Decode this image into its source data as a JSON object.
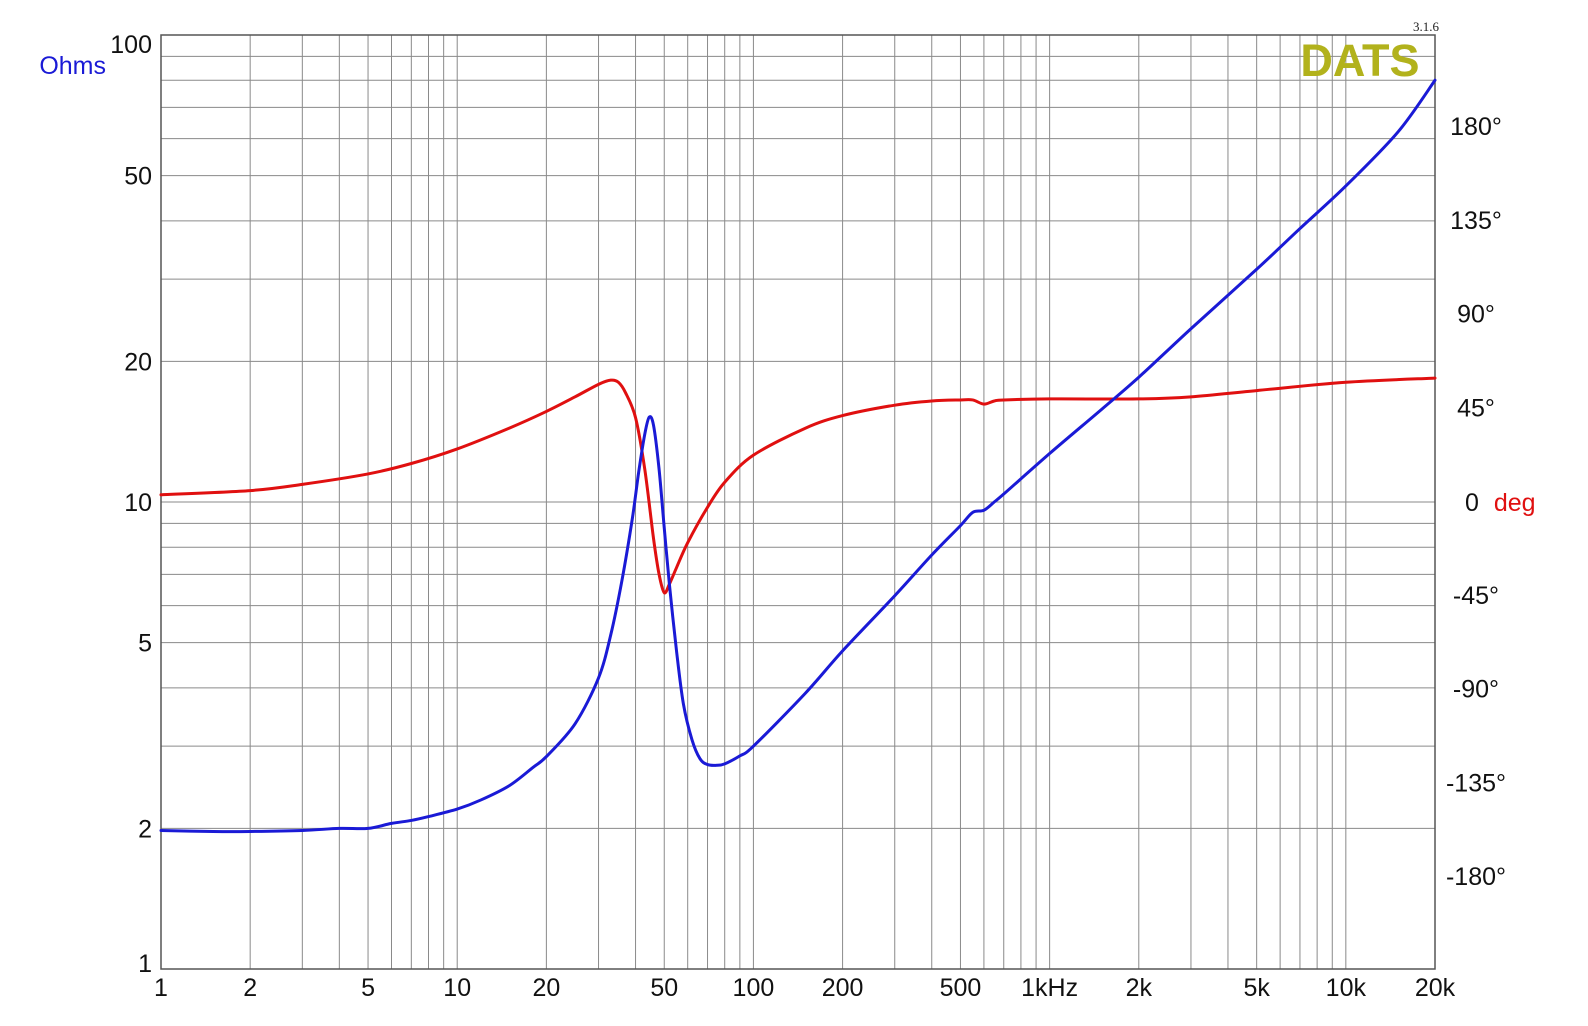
{
  "logo": {
    "brand": "DATS",
    "version": "3.1.6"
  },
  "colors": {
    "impedance": "#1a1ad6",
    "phase": "#e01010",
    "grid": "#8a8a8a",
    "frame": "#555555",
    "brand": "#b2b21c"
  },
  "chart_data": {
    "type": "line",
    "title": "",
    "x_scale": "log",
    "y_scale": "log",
    "xlim": [
      1,
      20000
    ],
    "ylim": [
      1,
      100
    ],
    "y2lim": [
      -180,
      180
    ],
    "grid": true,
    "x_tick_labels": [
      {
        "v": 1,
        "t": "1"
      },
      {
        "v": 2,
        "t": "2"
      },
      {
        "v": 5,
        "t": "5"
      },
      {
        "v": 10,
        "t": "10"
      },
      {
        "v": 20,
        "t": "20"
      },
      {
        "v": 50,
        "t": "50"
      },
      {
        "v": 100,
        "t": "100"
      },
      {
        "v": 200,
        "t": "200"
      },
      {
        "v": 500,
        "t": "500"
      },
      {
        "v": 1000,
        "t": "1kHz"
      },
      {
        "v": 2000,
        "t": "2k"
      },
      {
        "v": 5000,
        "t": "5k"
      },
      {
        "v": 10000,
        "t": "10k"
      },
      {
        "v": 20000,
        "t": "20k"
      }
    ],
    "y_axis_label": "Ohms",
    "y_tick_labels": [
      {
        "v": 1,
        "t": "1"
      },
      {
        "v": 2,
        "t": "2"
      },
      {
        "v": 5,
        "t": "5"
      },
      {
        "v": 10,
        "t": "10"
      },
      {
        "v": 20,
        "t": "20"
      },
      {
        "v": 50,
        "t": "50"
      },
      {
        "v": 100,
        "t": "100"
      }
    ],
    "y2_axis_label_prefix": "0",
    "y2_axis_label_unit": "deg",
    "y2_tick_labels": [
      {
        "v": 180,
        "t": "180°"
      },
      {
        "v": 135,
        "t": "135°"
      },
      {
        "v": 90,
        "t": "90°"
      },
      {
        "v": 45,
        "t": "45°"
      },
      {
        "v": -45,
        "t": "-45°"
      },
      {
        "v": -90,
        "t": "-90°"
      },
      {
        "v": -135,
        "t": "-135°"
      },
      {
        "v": -180,
        "t": "-180°"
      }
    ],
    "series": [
      {
        "axis": "left",
        "color": "#1a1ad6",
        "points": [
          [
            1,
            1.98
          ],
          [
            1.5,
            1.97
          ],
          [
            2,
            1.97
          ],
          [
            3,
            1.98
          ],
          [
            4,
            2.0
          ],
          [
            5,
            2.0
          ],
          [
            6,
            2.05
          ],
          [
            7,
            2.08
          ],
          [
            8,
            2.12
          ],
          [
            10,
            2.2
          ],
          [
            12,
            2.3
          ],
          [
            15,
            2.47
          ],
          [
            18,
            2.7
          ],
          [
            20,
            2.85
          ],
          [
            25,
            3.35
          ],
          [
            30,
            4.2
          ],
          [
            33,
            5.2
          ],
          [
            36,
            6.8
          ],
          [
            39,
            9.2
          ],
          [
            41,
            11.6
          ],
          [
            43,
            14.0
          ],
          [
            44.5,
            15.2
          ],
          [
            46,
            14.6
          ],
          [
            48,
            11.8
          ],
          [
            50,
            8.8
          ],
          [
            52,
            6.7
          ],
          [
            55,
            4.8
          ],
          [
            58,
            3.7
          ],
          [
            62,
            3.1
          ],
          [
            66,
            2.82
          ],
          [
            70,
            2.74
          ],
          [
            75,
            2.73
          ],
          [
            80,
            2.75
          ],
          [
            90,
            2.86
          ],
          [
            100,
            3.0
          ],
          [
            150,
            3.9
          ],
          [
            200,
            4.8
          ],
          [
            300,
            6.3
          ],
          [
            400,
            7.7
          ],
          [
            500,
            8.9
          ],
          [
            550,
            9.5
          ],
          [
            600,
            9.6
          ],
          [
            650,
            10.0
          ],
          [
            700,
            10.4
          ],
          [
            1000,
            12.7
          ],
          [
            1500,
            15.8
          ],
          [
            2000,
            18.5
          ],
          [
            3000,
            23.5
          ],
          [
            5000,
            31.5
          ],
          [
            7000,
            38.5
          ],
          [
            10000,
            47.5
          ],
          [
            15000,
            62.0
          ],
          [
            20000,
            80.0
          ]
        ]
      },
      {
        "axis": "right",
        "color": "#e01010",
        "points": [
          [
            1,
            3
          ],
          [
            2,
            5
          ],
          [
            3,
            8
          ],
          [
            5,
            13
          ],
          [
            7,
            18
          ],
          [
            10,
            25
          ],
          [
            15,
            35
          ],
          [
            20,
            43
          ],
          [
            25,
            50
          ],
          [
            30,
            56
          ],
          [
            33,
            58
          ],
          [
            35,
            57
          ],
          [
            37,
            52
          ],
          [
            40,
            40
          ],
          [
            43,
            15
          ],
          [
            46,
            -18
          ],
          [
            48,
            -35
          ],
          [
            50,
            -44
          ],
          [
            52,
            -40
          ],
          [
            55,
            -32
          ],
          [
            60,
            -20
          ],
          [
            70,
            -3
          ],
          [
            80,
            9
          ],
          [
            100,
            22
          ],
          [
            150,
            35
          ],
          [
            200,
            41
          ],
          [
            300,
            46
          ],
          [
            400,
            48
          ],
          [
            500,
            48.5
          ],
          [
            550,
            48.5
          ],
          [
            600,
            46.5
          ],
          [
            650,
            48
          ],
          [
            700,
            48.5
          ],
          [
            1000,
            49
          ],
          [
            2000,
            49
          ],
          [
            3000,
            50
          ],
          [
            5000,
            53
          ],
          [
            10000,
            57
          ],
          [
            20000,
            59
          ]
        ]
      }
    ]
  }
}
